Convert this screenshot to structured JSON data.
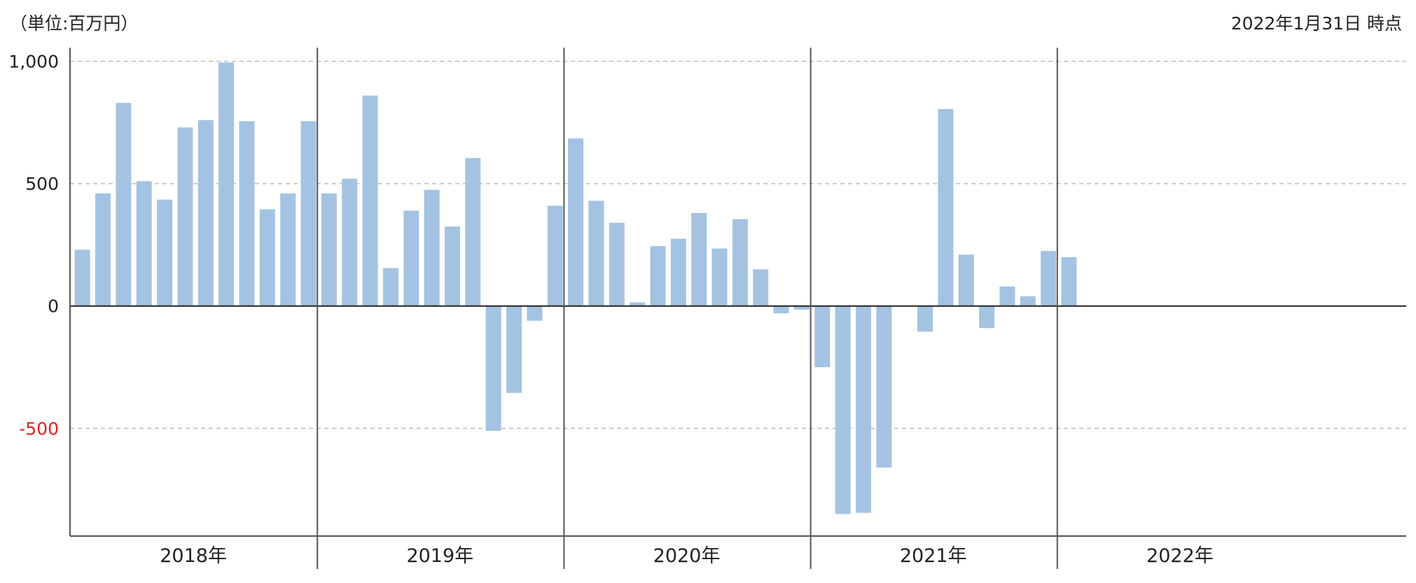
{
  "header": {
    "unit": "（単位:百万円）",
    "as_of": "2022年1月31日 時点"
  },
  "colors": {
    "bar": "#a4c3e2",
    "zero_line": "#222222",
    "grid": "#bbbbbb",
    "axis": "#555555",
    "negative_tick": "#e02020"
  },
  "chart_data": {
    "type": "bar",
    "title": "",
    "xlabel": "",
    "ylabel": "",
    "ylim": [
      -940,
      1010
    ],
    "yticks": [
      {
        "value": 1000,
        "label": "1,000"
      },
      {
        "value": 500,
        "label": "500"
      },
      {
        "value": 0,
        "label": "0"
      },
      {
        "value": -500,
        "label": "-500"
      }
    ],
    "grid": true,
    "years": [
      {
        "label": "2018年",
        "values": [
          230,
          460,
          830,
          510,
          435,
          730,
          760,
          995,
          755,
          395,
          460,
          755
        ]
      },
      {
        "label": "2019年",
        "values": [
          460,
          520,
          860,
          155,
          390,
          475,
          325,
          605,
          -510,
          -355,
          -60,
          410
        ]
      },
      {
        "label": "2020年",
        "values": [
          685,
          430,
          340,
          15,
          245,
          275,
          380,
          235,
          355,
          150,
          -30,
          -15
        ]
      },
      {
        "label": "2021年",
        "values": [
          -250,
          -850,
          -845,
          -660,
          null,
          -105,
          805,
          210,
          -90,
          80,
          40,
          225
        ]
      },
      {
        "label": "2022年",
        "values": [
          200
        ]
      }
    ]
  }
}
